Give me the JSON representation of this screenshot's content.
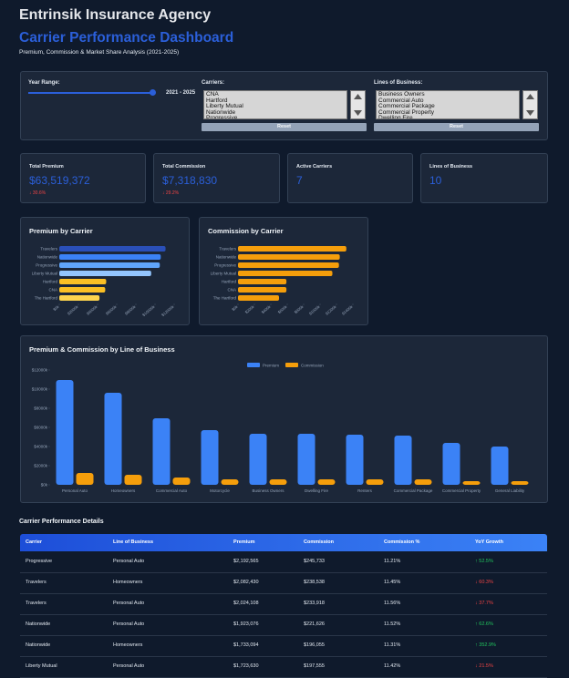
{
  "header": {
    "title": "Entrinsik Insurance Agency",
    "heading": "Carrier Performance Dashboard",
    "subtitle": "Premium, Commission & Market Share Analysis (2021-2025)"
  },
  "filters": {
    "year_range": {
      "label": "Year Range:",
      "value": "2021 - 2025"
    },
    "carriers": {
      "label": "Carriers:",
      "options": [
        "CNA",
        "Hartford",
        "Liberty Mutual",
        "Nationwide",
        "Progressive"
      ],
      "button": "Reset"
    },
    "lines": {
      "label": "Lines of Business:",
      "options": [
        "Business Owners",
        "Commercial Auto",
        "Commercial Package",
        "Commercial Property",
        "Dwelling Fire"
      ],
      "button": "Reset"
    }
  },
  "kpis": [
    {
      "label": "Total Premium",
      "value": "$63,519,372",
      "change": "↓ 30.6%"
    },
    {
      "label": "Total Commission",
      "value": "$7,318,830",
      "change": "↓ 29.2%"
    },
    {
      "label": "Active Carriers",
      "value": "7"
    },
    {
      "label": "Lines of Business",
      "value": "10"
    }
  ],
  "chart_data": [
    {
      "type": "hbar",
      "title": "Premium by Carrier",
      "categories": [
        "Travelers",
        "Nationwide",
        "Progressive",
        "Liberty Mutual",
        "Hartford",
        "CNA",
        "The Hartford"
      ],
      "values": [
        11100,
        10600,
        10500,
        9600,
        4900,
        4800,
        4200
      ],
      "colors": [
        "#2a4fb8",
        "#3b82f6",
        "#60a5fa",
        "#93c5fd",
        "#fbbf24",
        "#fbbf24",
        "#fcd34d"
      ],
      "xlim": [
        0,
        12000
      ],
      "xticks": [
        {
          "value": 0,
          "label": "$0k"
        },
        {
          "value": 2000,
          "label": "$2000k"
        },
        {
          "value": 4000,
          "label": "$4000k"
        },
        {
          "value": 6000,
          "label": "$6000k"
        },
        {
          "value": 8000,
          "label": "$8000k"
        },
        {
          "value": 10000,
          "label": "$10000k"
        },
        {
          "value": 12000,
          "label": "$12000k"
        }
      ]
    },
    {
      "type": "hbar",
      "title": "Commission by Carrier",
      "categories": [
        "Travelers",
        "Nationwide",
        "Progressive",
        "Liberty Mutual",
        "Hartford",
        "CNA",
        "The Hartford"
      ],
      "values": [
        1320,
        1240,
        1230,
        1150,
        590,
        590,
        500
      ],
      "colors": [
        "#f59e0b",
        "#f59e0b",
        "#f59e0b",
        "#f59e0b",
        "#f59e0b",
        "#f59e0b",
        "#f59e0b"
      ],
      "xlim": [
        0,
        1400
      ],
      "xticks": [
        {
          "value": 0,
          "label": "$0k"
        },
        {
          "value": 200,
          "label": "$200k"
        },
        {
          "value": 400,
          "label": "$400k"
        },
        {
          "value": 600,
          "label": "$600k"
        },
        {
          "value": 800,
          "label": "$800k"
        },
        {
          "value": 1000,
          "label": "$1000k"
        },
        {
          "value": 1200,
          "label": "$1200k"
        },
        {
          "value": 1400,
          "label": "$1400k"
        }
      ]
    },
    {
      "type": "grouped-bar",
      "title": "Premium & Commission by Line of Business",
      "categories": [
        "Personal Auto",
        "Homeowners",
        "Commercial Auto",
        "Motorcycle",
        "Business Owners",
        "Dwelling Fire",
        "Renters",
        "Commercial Package",
        "Commercial Property",
        "General Liability"
      ],
      "series": [
        {
          "name": "Premium",
          "color": "#3b82f6",
          "values": [
            10950,
            9620,
            6950,
            5710,
            5330,
            5330,
            5240,
            5140,
            4380,
            4000
          ]
        },
        {
          "name": "Commission",
          "color": "#f59e0b",
          "values": [
            1240,
            1050,
            760,
            570,
            570,
            570,
            570,
            570,
            380,
            380
          ]
        }
      ],
      "ylim": [
        0,
        12000
      ],
      "yticks": [
        {
          "value": 0,
          "label": "$0k"
        },
        {
          "value": 2000,
          "label": "$2000k"
        },
        {
          "value": 4000,
          "label": "$4000k"
        },
        {
          "value": 6000,
          "label": "$6000k"
        },
        {
          "value": 8000,
          "label": "$8000k"
        },
        {
          "value": 10000,
          "label": "$10000k"
        },
        {
          "value": 12000,
          "label": "$12000k"
        }
      ],
      "legend": "top"
    }
  ],
  "table": {
    "title": "Carrier Performance Details",
    "columns": [
      "Carrier",
      "Line of Business",
      "Premium",
      "Commission",
      "Commission %",
      "YoY Growth"
    ],
    "rows": [
      [
        "Progressive",
        "Personal Auto",
        "$2,192,565",
        "$245,733",
        "11.21%",
        "↑ 52.5%"
      ],
      [
        "Travelers",
        "Homeowners",
        "$2,082,430",
        "$238,538",
        "11.45%",
        "↓ 60.3%"
      ],
      [
        "Travelers",
        "Personal Auto",
        "$2,024,108",
        "$233,918",
        "11.56%",
        "↓ 37.7%"
      ],
      [
        "Nationwide",
        "Personal Auto",
        "$1,923,076",
        "$221,626",
        "11.52%",
        "↑ 62.6%"
      ],
      [
        "Nationwide",
        "Homeowners",
        "$1,733,094",
        "$196,055",
        "11.31%",
        "↑ 352.9%"
      ],
      [
        "Liberty Mutual",
        "Personal Auto",
        "$1,723,630",
        "$197,555",
        "11.42%",
        "↓ 21.5%"
      ]
    ]
  }
}
